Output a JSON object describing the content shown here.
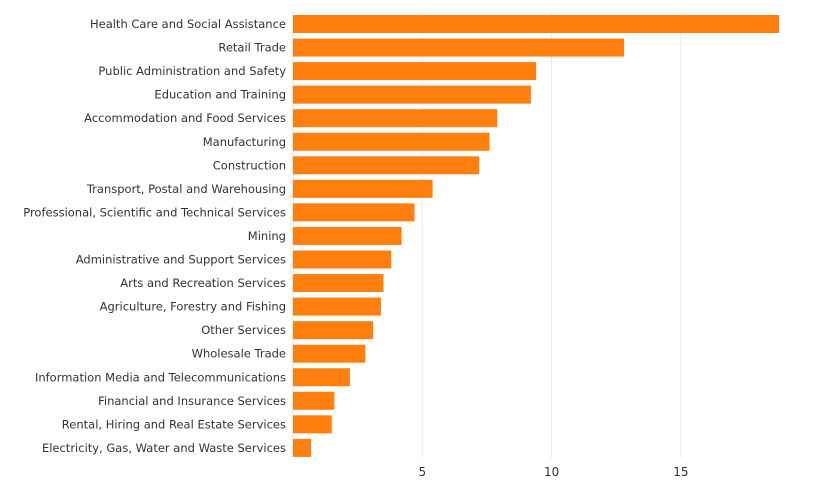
{
  "chart_data": {
    "type": "bar",
    "orientation": "horizontal",
    "categories": [
      "Health Care and Social Assistance",
      "Retail Trade",
      "Public Administration and Safety",
      "Education and Training",
      "Accommodation and Food Services",
      "Manufacturing",
      "Construction",
      "Transport, Postal and Warehousing",
      "Professional, Scientific and Technical Services",
      "Mining",
      "Administrative and Support Services",
      "Arts and Recreation Services",
      "Agriculture, Forestry and Fishing",
      "Other Services",
      "Wholesale Trade",
      "Information Media and Telecommunications",
      "Financial and Insurance Services",
      "Rental, Hiring and Real Estate Services",
      "Electricity, Gas, Water and Waste Services"
    ],
    "values": [
      18.8,
      12.8,
      9.4,
      9.2,
      7.9,
      7.6,
      7.2,
      5.4,
      4.7,
      4.2,
      3.8,
      3.5,
      3.4,
      3.1,
      2.8,
      2.2,
      1.6,
      1.5,
      0.7
    ],
    "x_ticks": [
      5,
      10,
      15
    ],
    "xlim": [
      0,
      19.8
    ],
    "grid": "vertical",
    "bar_color": "#ff7f0e",
    "title": "",
    "xlabel": "",
    "ylabel": ""
  }
}
